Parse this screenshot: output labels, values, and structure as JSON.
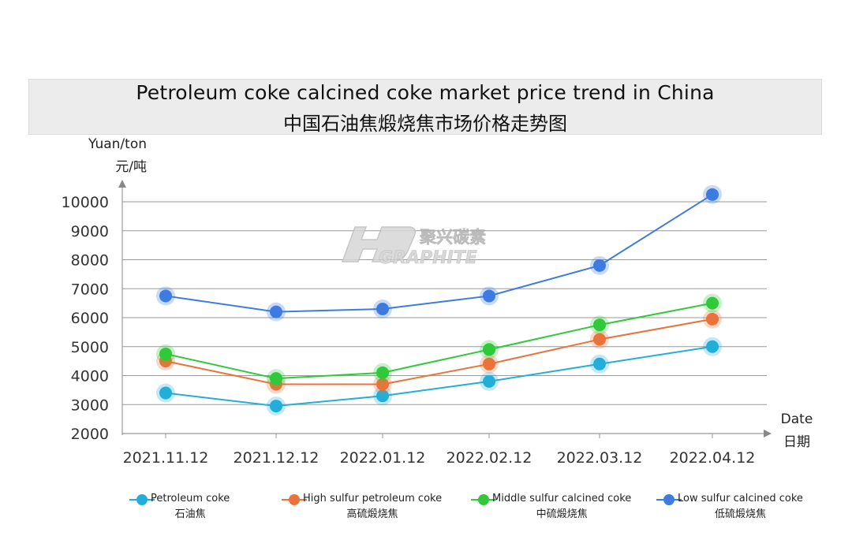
{
  "title": {
    "en": "Petroleum coke calcined coke market price trend in China",
    "zh": "中国石油焦煅烧焦市场价格走势图"
  },
  "y_unit": {
    "en": "Yuan/ton",
    "zh": "元/吨"
  },
  "x_unit": {
    "en": "Date",
    "zh": "日期"
  },
  "watermark": {
    "cn": "聚兴碳素",
    "en": "GRAPHITE"
  },
  "chart_data": {
    "type": "line",
    "title": "Petroleum coke calcined coke market price trend in China",
    "xlabel": "Date",
    "ylabel": "Yuan/ton",
    "x": [
      "2021.11.12",
      "2021.12.12",
      "2022.01.12",
      "2022.02.12",
      "2022.03.12",
      "2022.04.12"
    ],
    "yticks": [
      2000,
      3000,
      4000,
      5000,
      6000,
      7000,
      8000,
      9000,
      10000
    ],
    "ylim": [
      2000,
      10200
    ],
    "grid": true,
    "legend_position": "bottom",
    "series": [
      {
        "name": "Petroleum coke",
        "name_zh": "石油焦",
        "color": "#22aed8",
        "values": [
          3400,
          2950,
          3300,
          3800,
          4400,
          5000
        ]
      },
      {
        "name": "High sulfur petroleum coke",
        "name_zh": "高硫煅烧焦",
        "color": "#e8743b",
        "values": [
          4500,
          3700,
          3700,
          4400,
          5250,
          5950
        ]
      },
      {
        "name": "Middle sulfur calcined coke",
        "name_zh": "中硫煅烧焦",
        "color": "#2fc93a",
        "values": [
          4750,
          3900,
          4100,
          4900,
          5750,
          6500
        ]
      },
      {
        "name": "Low sulfur calcined coke",
        "name_zh": "低硫煅烧焦",
        "color": "#3d7be0",
        "values": [
          6750,
          6200,
          6300,
          6750,
          7800,
          10250
        ]
      }
    ]
  }
}
